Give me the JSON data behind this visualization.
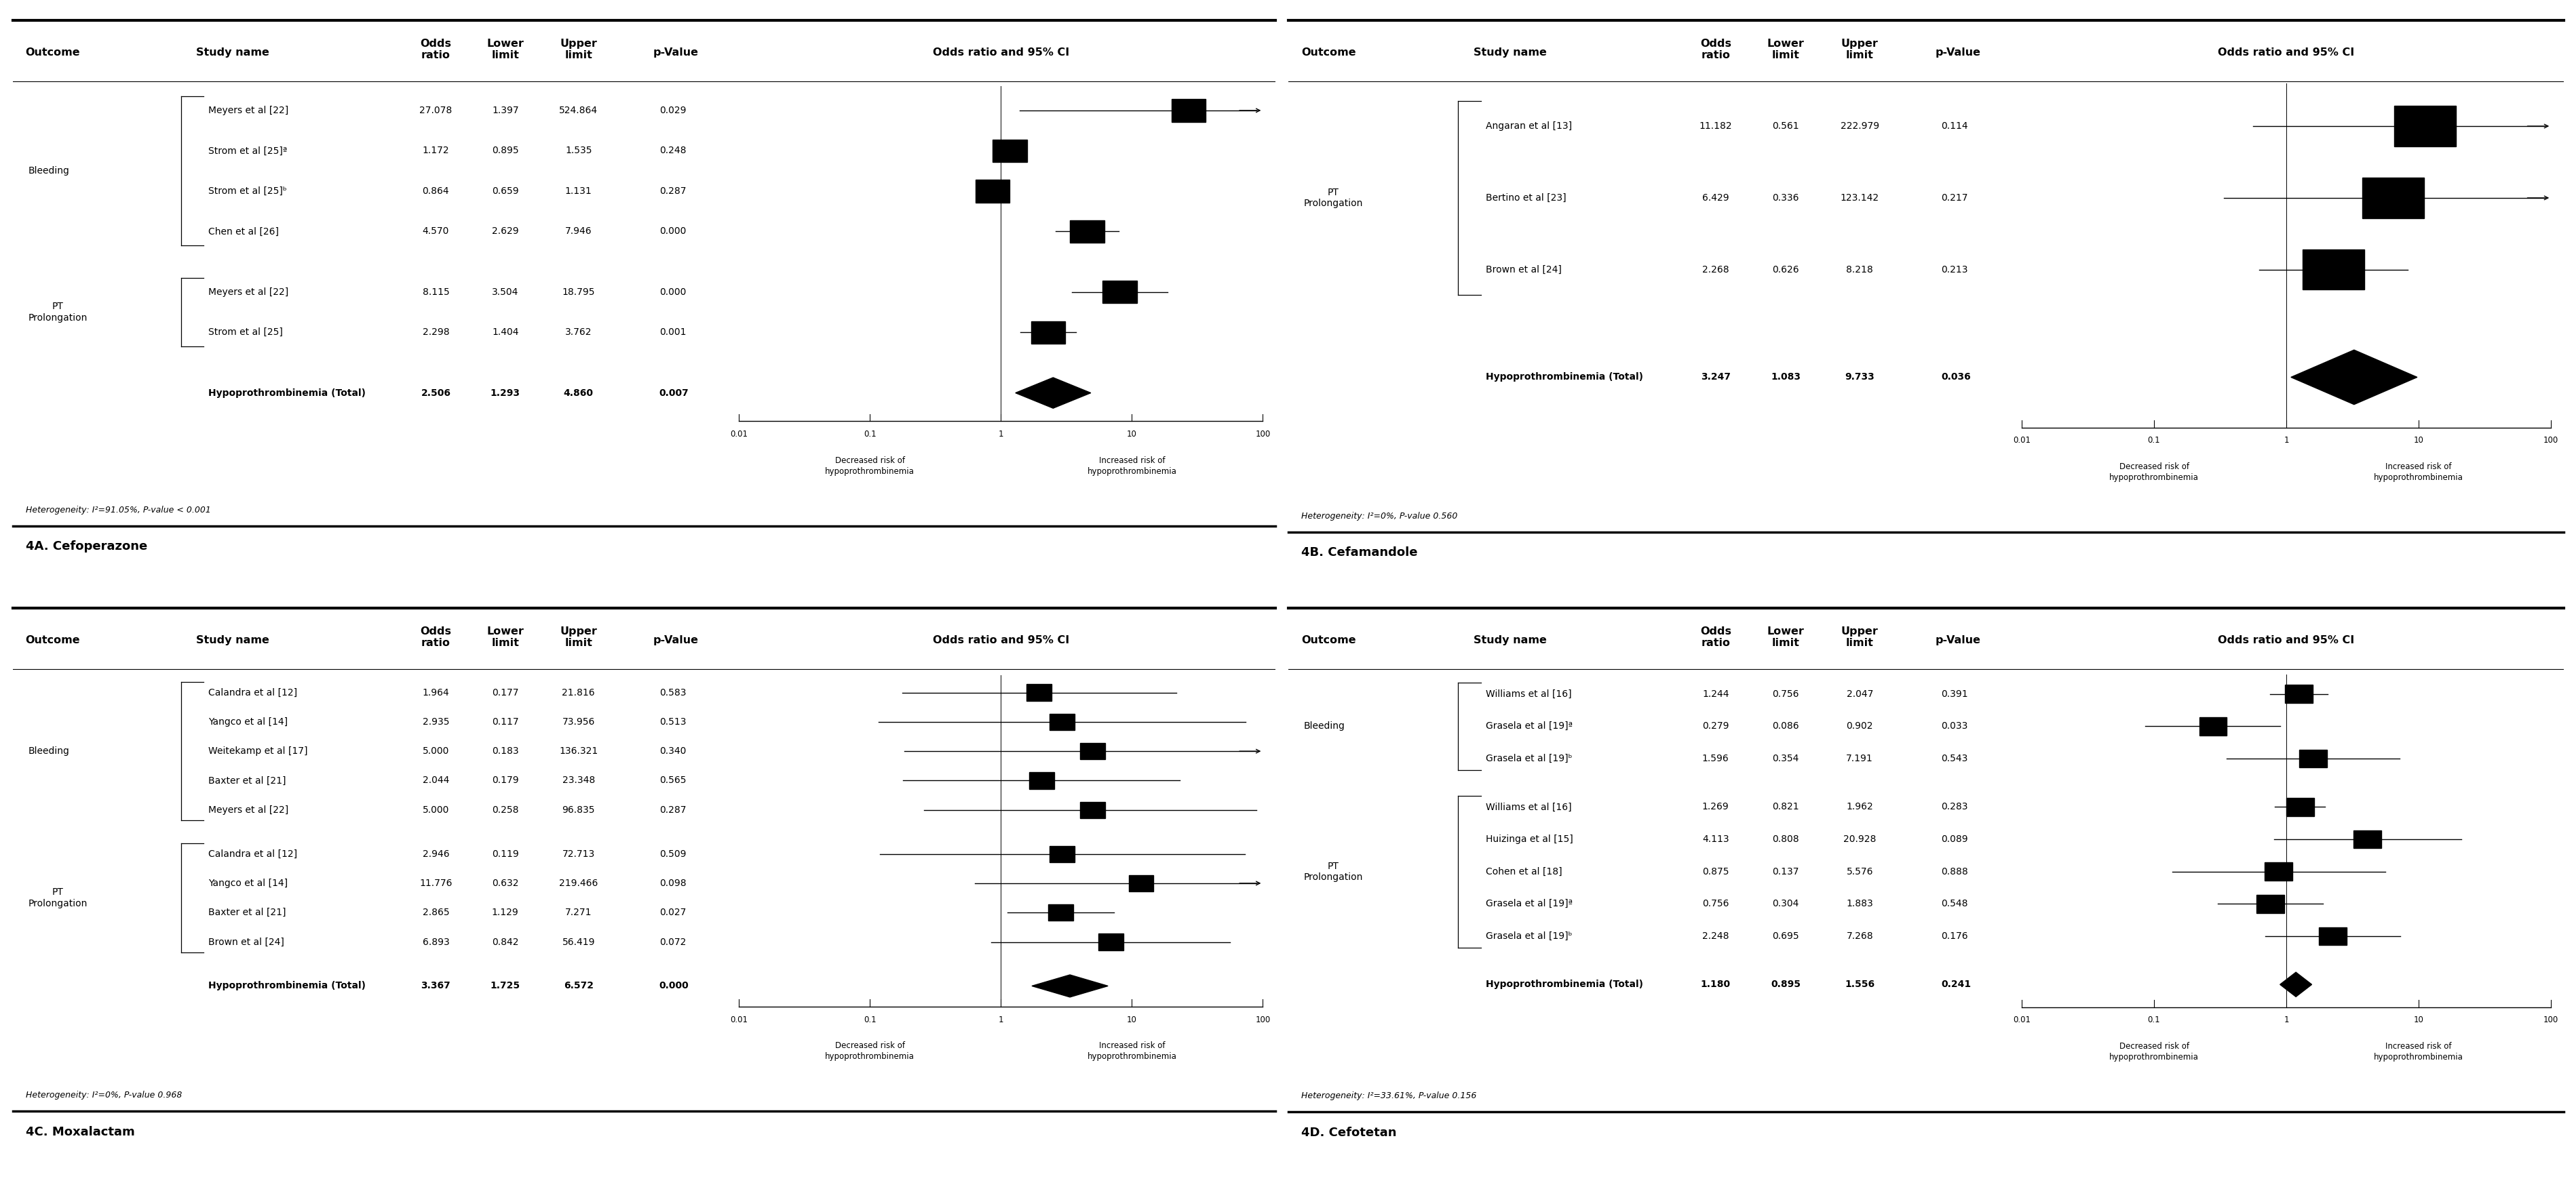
{
  "panels": [
    {
      "title": "4A. Cefoperazone",
      "heterogeneity": "Heterogeneity: I²=91.05%, P-value < 0.001",
      "groups": [
        {
          "label": "Bleeding",
          "studies": [
            {
              "name": "Meyers et al [22]",
              "or": 27.078,
              "lower": 1.397,
              "upper": 524.864,
              "p": 0.029
            },
            {
              "name": "Strom et al [25]ª",
              "or": 1.172,
              "lower": 0.895,
              "upper": 1.535,
              "p": 0.248
            },
            {
              "name": "Strom et al [25]ᵇ",
              "or": 0.864,
              "lower": 0.659,
              "upper": 1.131,
              "p": 0.287
            },
            {
              "name": "Chen et al [26]",
              "or": 4.57,
              "lower": 2.629,
              "upper": 7.946,
              "p": 0.0
            }
          ]
        },
        {
          "label": "PT\nProlongation",
          "studies": [
            {
              "name": "Meyers et al [22]",
              "or": 8.115,
              "lower": 3.504,
              "upper": 18.795,
              "p": 0.0
            },
            {
              "name": "Strom et al [25]",
              "or": 2.298,
              "lower": 1.404,
              "upper": 3.762,
              "p": 0.001
            }
          ]
        }
      ],
      "total": {
        "name": "Hypoprothrombinemia (Total)",
        "or": 2.506,
        "lower": 1.293,
        "upper": 4.86,
        "p": 0.007
      }
    },
    {
      "title": "4B. Cefamandole",
      "heterogeneity": "Heterogeneity: I²=0%, P-value 0.560",
      "groups": [
        {
          "label": "PT\nProlongation",
          "studies": [
            {
              "name": "Angaran et al [13]",
              "or": 11.182,
              "lower": 0.561,
              "upper": 222.979,
              "p": 0.114
            },
            {
              "name": "Bertino et al [23]",
              "or": 6.429,
              "lower": 0.336,
              "upper": 123.142,
              "p": 0.217
            },
            {
              "name": "Brown et al [24]",
              "or": 2.268,
              "lower": 0.626,
              "upper": 8.218,
              "p": 0.213
            }
          ]
        }
      ],
      "total": {
        "name": "Hypoprothrombinemia (Total)",
        "or": 3.247,
        "lower": 1.083,
        "upper": 9.733,
        "p": 0.036
      }
    },
    {
      "title": "4C. Moxalactam",
      "heterogeneity": "Heterogeneity: I²=0%, P-value 0.968",
      "groups": [
        {
          "label": "Bleeding",
          "studies": [
            {
              "name": "Calandra et al [12]",
              "or": 1.964,
              "lower": 0.177,
              "upper": 21.816,
              "p": 0.583
            },
            {
              "name": "Yangco et al [14]",
              "or": 2.935,
              "lower": 0.117,
              "upper": 73.956,
              "p": 0.513
            },
            {
              "name": "Weitekamp et al [17]",
              "or": 5.0,
              "lower": 0.183,
              "upper": 136.321,
              "p": 0.34
            },
            {
              "name": "Baxter et al [21]",
              "or": 2.044,
              "lower": 0.179,
              "upper": 23.348,
              "p": 0.565
            },
            {
              "name": "Meyers et al [22]",
              "or": 5.0,
              "lower": 0.258,
              "upper": 96.835,
              "p": 0.287
            }
          ]
        },
        {
          "label": "PT\nProlongation",
          "studies": [
            {
              "name": "Calandra et al [12]",
              "or": 2.946,
              "lower": 0.119,
              "upper": 72.713,
              "p": 0.509
            },
            {
              "name": "Yangco et al [14]",
              "or": 11.776,
              "lower": 0.632,
              "upper": 219.466,
              "p": 0.098
            },
            {
              "name": "Baxter et al [21]",
              "or": 2.865,
              "lower": 1.129,
              "upper": 7.271,
              "p": 0.027
            },
            {
              "name": "Brown et al [24]",
              "or": 6.893,
              "lower": 0.842,
              "upper": 56.419,
              "p": 0.072
            }
          ]
        }
      ],
      "total": {
        "name": "Hypoprothrombinemia (Total)",
        "or": 3.367,
        "lower": 1.725,
        "upper": 6.572,
        "p": 0.0
      }
    },
    {
      "title": "4D. Cefotetan",
      "heterogeneity": "Heterogeneity: I²=33.61%, P-value 0.156",
      "groups": [
        {
          "label": "Bleeding",
          "studies": [
            {
              "name": "Williams et al [16]",
              "or": 1.244,
              "lower": 0.756,
              "upper": 2.047,
              "p": 0.391
            },
            {
              "name": "Grasela et al [19]ª",
              "or": 0.279,
              "lower": 0.086,
              "upper": 0.902,
              "p": 0.033
            },
            {
              "name": "Grasela et al [19]ᵇ",
              "or": 1.596,
              "lower": 0.354,
              "upper": 7.191,
              "p": 0.543
            }
          ]
        },
        {
          "label": "PT\nProlongation",
          "studies": [
            {
              "name": "Williams et al [16]",
              "or": 1.269,
              "lower": 0.821,
              "upper": 1.962,
              "p": 0.283
            },
            {
              "name": "Huizinga et al [15]",
              "or": 4.113,
              "lower": 0.808,
              "upper": 20.928,
              "p": 0.089
            },
            {
              "name": "Cohen et al [18]",
              "or": 0.875,
              "lower": 0.137,
              "upper": 5.576,
              "p": 0.888
            },
            {
              "name": "Grasela et al [19]ª",
              "or": 0.756,
              "lower": 0.304,
              "upper": 1.883,
              "p": 0.548
            },
            {
              "name": "Grasela et al [19]ᵇ",
              "or": 2.248,
              "lower": 0.695,
              "upper": 7.268,
              "p": 0.176
            }
          ]
        }
      ],
      "total": {
        "name": "Hypoprothrombinemia (Total)",
        "or": 1.18,
        "lower": 0.895,
        "upper": 1.556,
        "p": 0.241
      }
    }
  ]
}
